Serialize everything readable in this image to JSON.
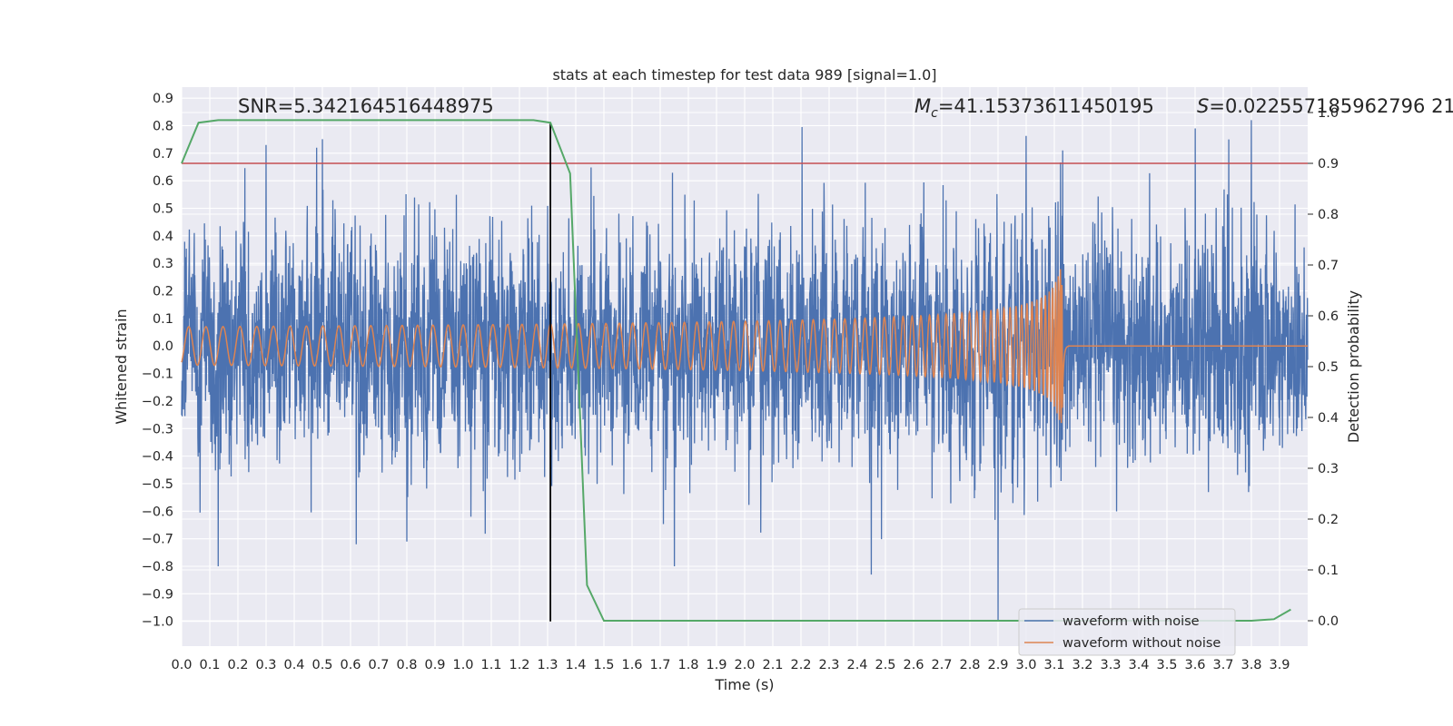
{
  "chart_data": {
    "type": "line",
    "title": "stats at each timestep for test data 989 [signal=1.0]",
    "xlabel": "Time (s)",
    "ylabel": "Whitened strain",
    "y2label": "Detection probability",
    "xlim": [
      0.0,
      4.0
    ],
    "ylim": [
      -1.09,
      0.94
    ],
    "y2lim": [
      -0.05,
      1.05
    ],
    "x_ticks": [
      0.0,
      0.1,
      0.2,
      0.3,
      0.4,
      0.5,
      0.6,
      0.7,
      0.8,
      0.9,
      1.0,
      1.1,
      1.2,
      1.3,
      1.4,
      1.5,
      1.6,
      1.7,
      1.8,
      1.9,
      2.0,
      2.1,
      2.2,
      2.3,
      2.4,
      2.5,
      2.6,
      2.7,
      2.8,
      2.9,
      3.0,
      3.1,
      3.2,
      3.3,
      3.4,
      3.5,
      3.6,
      3.7,
      3.8,
      3.9
    ],
    "x_tick_labels": [
      "0.0",
      "0.1",
      "0.2",
      "0.3",
      "0.4",
      "0.5",
      "0.6",
      "0.7",
      "0.8",
      "0.9",
      "1.0",
      "1.1",
      "1.2",
      "1.3",
      "1.4",
      "1.5",
      "1.6",
      "1.7",
      "1.8",
      "1.9",
      "2.0",
      "2.1",
      "2.2",
      "2.3",
      "2.4",
      "2.5",
      "2.6",
      "2.7",
      "2.8",
      "2.9",
      "3.0",
      "3.1",
      "3.2",
      "3.3",
      "3.4",
      "3.5",
      "3.6",
      "3.7",
      "3.8",
      "3.9"
    ],
    "y_ticks": [
      0.9,
      0.8,
      0.7,
      0.6,
      0.5,
      0.4,
      0.3,
      0.2,
      0.1,
      0.0,
      -0.1,
      -0.2,
      -0.3,
      -0.4,
      -0.5,
      -0.6,
      -0.7,
      -0.8,
      -0.9,
      -1.0
    ],
    "y_tick_labels": [
      "0.9",
      "0.8",
      "0.7",
      "0.6",
      "0.5",
      "0.4",
      "0.3",
      "0.2",
      "0.1",
      "0.0",
      "−0.1",
      "−0.2",
      "−0.3",
      "−0.4",
      "−0.5",
      "−0.6",
      "−0.7",
      "−0.8",
      "−0.9",
      "−1.0"
    ],
    "y2_ticks": [
      1.0,
      0.9,
      0.8,
      0.7,
      0.6,
      0.5,
      0.4,
      0.3,
      0.2,
      0.1,
      0.0
    ],
    "y2_tick_labels": [
      "1.0",
      "0.9",
      "0.8",
      "0.7",
      "0.6",
      "0.5",
      "0.4",
      "0.3",
      "0.2",
      "0.1",
      "0.0"
    ],
    "grid": true,
    "legend_position": "bottom-right",
    "annotations": {
      "snr": "SNR=5.342164516448975",
      "mc_symbol": "M",
      "mc_subscript": "c",
      "mc_value": "=41.15373611450195",
      "s_symbol": "S",
      "s_value": "=0.022557185962796 21"
    },
    "vline_x": 1.31,
    "threshold_y2": 0.9,
    "series": [
      {
        "name": "waveform with noise",
        "color": "#4c72b0",
        "axis": "left",
        "x_range": [
          0.0,
          4.0
        ],
        "n_points": 4096,
        "std": 0.2,
        "peaks": [
          {
            "x": 0.13,
            "y": -0.8
          },
          {
            "x": 0.3,
            "y": 0.73
          },
          {
            "x": 0.48,
            "y": 0.72
          },
          {
            "x": 0.62,
            "y": -0.72
          },
          {
            "x": 0.8,
            "y": -0.71
          },
          {
            "x": 1.75,
            "y": 0.84
          },
          {
            "x": 1.75,
            "y": -0.8
          },
          {
            "x": 2.45,
            "y": -0.83
          },
          {
            "x": 2.9,
            "y": -1.0
          },
          {
            "x": 3.13,
            "y": 0.71
          },
          {
            "x": 3.6,
            "y": 0.79
          },
          {
            "x": 3.8,
            "y": 0.82
          },
          {
            "x": 3.72,
            "y": 0.75
          }
        ]
      },
      {
        "name": "waveform without noise",
        "color": "#dd8452",
        "axis": "left",
        "x_range": [
          0.0,
          4.0
        ],
        "merger_x": 3.13,
        "peak_amplitude": 0.28
      },
      {
        "name": "",
        "color": "#55a868",
        "axis": "right",
        "x": [
          0.0,
          0.06,
          0.13,
          0.2,
          0.5,
          0.8,
          1.0,
          1.25,
          1.31,
          1.38,
          1.44,
          1.5,
          1.56,
          3.3,
          3.8,
          3.88,
          3.94
        ],
        "y": [
          0.9,
          0.98,
          0.985,
          0.985,
          0.985,
          0.985,
          0.985,
          0.985,
          0.98,
          0.88,
          0.07,
          0.0,
          0.0,
          0.0,
          0.0,
          0.003,
          0.022
        ]
      }
    ],
    "threshold_color": "#c44e52",
    "vline_color": "#000000"
  }
}
